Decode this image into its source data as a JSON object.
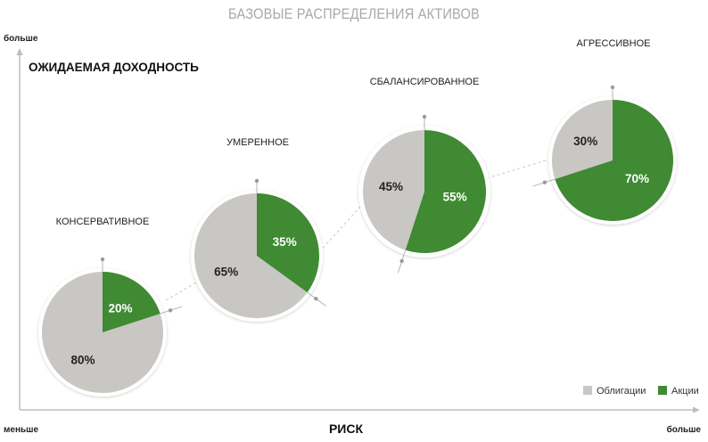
{
  "title": "БАЗОВЫЕ РАСПРЕДЕЛЕНИЯ АКТИВОВ",
  "colors": {
    "bonds": "#c9c7c4",
    "stocks": "#3f8a32",
    "axis": "#bdbdbd",
    "text": "#222222"
  },
  "chart_data": {
    "type": "pie",
    "title": "БАЗОВЫЕ РАСПРЕДЕЛЕНИЯ АКТИВОВ",
    "xlabel": "РИСК",
    "ylabel": "ОЖИДАЕМАЯ ДОХОДНОСТЬ",
    "x_axis_ends": {
      "low": "меньше",
      "high": "больше"
    },
    "y_axis_top": "больше",
    "legend": {
      "position": "bottom-right",
      "entries": [
        "Облигации",
        "Акции"
      ]
    },
    "series_names": [
      "Облигации",
      "Акции"
    ],
    "portfolios": [
      {
        "label": "КОНСЕРВАТИВНОЕ",
        "bonds": 80,
        "stocks": 20,
        "bonds_label": "80%",
        "stocks_label": "20%"
      },
      {
        "label": "УМЕРЕННОЕ",
        "bonds": 65,
        "stocks": 35,
        "bonds_label": "65%",
        "stocks_label": "35%"
      },
      {
        "label": "СБАЛАНСИРОВАННОЕ",
        "bonds": 45,
        "stocks": 55,
        "bonds_label": "45%",
        "stocks_label": "55%"
      },
      {
        "label": "АГРЕССИВНОЕ",
        "bonds": 30,
        "stocks": 70,
        "bonds_label": "30%",
        "stocks_label": "70%"
      }
    ]
  }
}
